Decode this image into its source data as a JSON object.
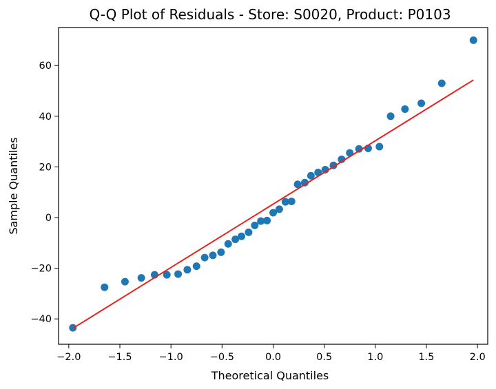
{
  "chart_data": {
    "type": "scatter",
    "title": "Q-Q Plot of Residuals - Store: S0020, Product: P0103",
    "xlabel": "Theoretical Quantiles",
    "ylabel": "Sample Quantiles",
    "xlim": [
      -2.1,
      2.1
    ],
    "ylim": [
      -50,
      75
    ],
    "xticks": [
      -2.0,
      -1.5,
      -1.0,
      -0.5,
      0.0,
      0.5,
      1.0,
      1.5,
      2.0
    ],
    "xtick_labels": [
      "−2.0",
      "−1.5",
      "−1.0",
      "−0.5",
      "0.0",
      "0.5",
      "1.0",
      "1.5",
      "2.0"
    ],
    "yticks": [
      -40,
      -20,
      0,
      20,
      40,
      60
    ],
    "ytick_labels": [
      "−40",
      "−20",
      "0",
      "20",
      "40",
      "60"
    ],
    "grid": false,
    "series": [
      {
        "kind": "points",
        "color": "#1f77b4",
        "x": [
          -1.96,
          -1.65,
          -1.45,
          -1.29,
          -1.16,
          -1.04,
          -0.93,
          -0.84,
          -0.75,
          -0.67,
          -0.59,
          -0.51,
          -0.44,
          -0.37,
          -0.31,
          -0.24,
          -0.18,
          -0.12,
          -0.06,
          0.0,
          0.06,
          0.12,
          0.18,
          0.24,
          0.31,
          0.37,
          0.44,
          0.51,
          0.59,
          0.67,
          0.75,
          0.84,
          0.93,
          1.04,
          1.15,
          1.29,
          1.45,
          1.65,
          1.96
        ],
        "y": [
          -43.5,
          -27.5,
          -25.3,
          -23.8,
          -22.6,
          -22.6,
          -22.3,
          -20.6,
          -19.2,
          -15.8,
          -14.9,
          -13.7,
          -10.4,
          -8.6,
          -7.4,
          -5.8,
          -3.1,
          -1.4,
          -1.2,
          1.9,
          3.3,
          6.2,
          6.4,
          13.1,
          13.8,
          16.5,
          17.8,
          18.9,
          20.6,
          23.0,
          25.5,
          27.1,
          27.3,
          28.0,
          40.0,
          42.8,
          45.1,
          53.0,
          70.0
        ]
      },
      {
        "kind": "line",
        "color": "#e8211c",
        "x": [
          -1.96,
          1.96
        ],
        "y": [
          -43.7,
          54.3
        ]
      }
    ]
  }
}
